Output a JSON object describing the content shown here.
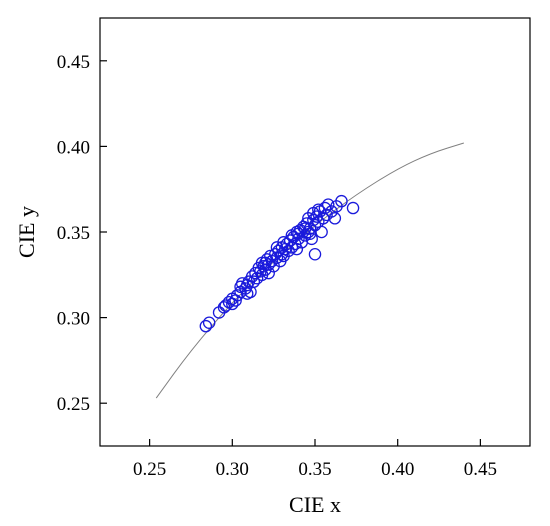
{
  "chart_data": {
    "type": "scatter",
    "title": "",
    "xlabel": "CIE x",
    "ylabel": "CIE y",
    "xlim": [
      0.22,
      0.48
    ],
    "ylim": [
      0.225,
      0.475
    ],
    "xticks": [
      0.25,
      0.3,
      0.35,
      0.4,
      0.45
    ],
    "xtick_labels": [
      "0.25",
      "0.30",
      "0.35",
      "0.40",
      "0.45"
    ],
    "yticks": [
      0.25,
      0.3,
      0.35,
      0.4,
      0.45
    ],
    "ytick_labels": [
      "0.25",
      "0.30",
      "0.35",
      "0.40",
      "0.45"
    ],
    "grid": false,
    "legend": "none",
    "marker_color": "#1a1adb",
    "curve_color": "#808080",
    "series": [
      {
        "kind": "line",
        "x": [
          0.254,
          0.275,
          0.3,
          0.325,
          0.35,
          0.375,
          0.4,
          0.42,
          0.44
        ],
        "y": [
          0.253,
          0.281,
          0.309,
          0.333,
          0.354,
          0.372,
          0.387,
          0.396,
          0.402
        ]
      },
      {
        "kind": "markers",
        "points": [
          [
            0.284,
            0.295
          ],
          [
            0.286,
            0.297
          ],
          [
            0.292,
            0.303
          ],
          [
            0.295,
            0.306
          ],
          [
            0.298,
            0.309
          ],
          [
            0.3,
            0.311
          ],
          [
            0.3,
            0.308
          ],
          [
            0.302,
            0.31
          ],
          [
            0.303,
            0.313
          ],
          [
            0.305,
            0.315
          ],
          [
            0.305,
            0.318
          ],
          [
            0.306,
            0.32
          ],
          [
            0.308,
            0.317
          ],
          [
            0.309,
            0.319
          ],
          [
            0.31,
            0.321
          ],
          [
            0.311,
            0.315
          ],
          [
            0.312,
            0.324
          ],
          [
            0.313,
            0.321
          ],
          [
            0.314,
            0.326
          ],
          [
            0.315,
            0.323
          ],
          [
            0.316,
            0.329
          ],
          [
            0.317,
            0.327
          ],
          [
            0.318,
            0.325
          ],
          [
            0.319,
            0.33
          ],
          [
            0.32,
            0.328
          ],
          [
            0.32,
            0.332
          ],
          [
            0.321,
            0.334
          ],
          [
            0.322,
            0.331
          ],
          [
            0.323,
            0.336
          ],
          [
            0.324,
            0.333
          ],
          [
            0.325,
            0.33
          ],
          [
            0.326,
            0.337
          ],
          [
            0.327,
            0.335
          ],
          [
            0.328,
            0.339
          ],
          [
            0.329,
            0.333
          ],
          [
            0.33,
            0.341
          ],
          [
            0.33,
            0.337
          ],
          [
            0.331,
            0.336
          ],
          [
            0.332,
            0.34
          ],
          [
            0.333,
            0.343
          ],
          [
            0.334,
            0.339
          ],
          [
            0.335,
            0.345
          ],
          [
            0.336,
            0.341
          ],
          [
            0.337,
            0.347
          ],
          [
            0.338,
            0.343
          ],
          [
            0.339,
            0.34
          ],
          [
            0.34,
            0.349
          ],
          [
            0.34,
            0.346
          ],
          [
            0.341,
            0.351
          ],
          [
            0.342,
            0.344
          ],
          [
            0.343,
            0.353
          ],
          [
            0.344,
            0.348
          ],
          [
            0.345,
            0.355
          ],
          [
            0.346,
            0.35
          ],
          [
            0.347,
            0.352
          ],
          [
            0.348,
            0.346
          ],
          [
            0.349,
            0.357
          ],
          [
            0.349,
            0.361
          ],
          [
            0.35,
            0.354
          ],
          [
            0.351,
            0.359
          ],
          [
            0.352,
            0.356
          ],
          [
            0.353,
            0.362
          ],
          [
            0.354,
            0.35
          ],
          [
            0.355,
            0.358
          ],
          [
            0.356,
            0.364
          ],
          [
            0.357,
            0.36
          ],
          [
            0.358,
            0.366
          ],
          [
            0.36,
            0.362
          ],
          [
            0.362,
            0.358
          ],
          [
            0.363,
            0.365
          ],
          [
            0.366,
            0.368
          ],
          [
            0.373,
            0.364
          ],
          [
            0.35,
            0.337
          ],
          [
            0.318,
            0.332
          ],
          [
            0.327,
            0.341
          ],
          [
            0.336,
            0.348
          ],
          [
            0.344,
            0.352
          ],
          [
            0.309,
            0.314
          ],
          [
            0.296,
            0.307
          ],
          [
            0.322,
            0.326
          ],
          [
            0.331,
            0.344
          ],
          [
            0.339,
            0.35
          ],
          [
            0.347,
            0.349
          ],
          [
            0.352,
            0.363
          ],
          [
            0.346,
            0.358
          ]
        ]
      }
    ]
  }
}
